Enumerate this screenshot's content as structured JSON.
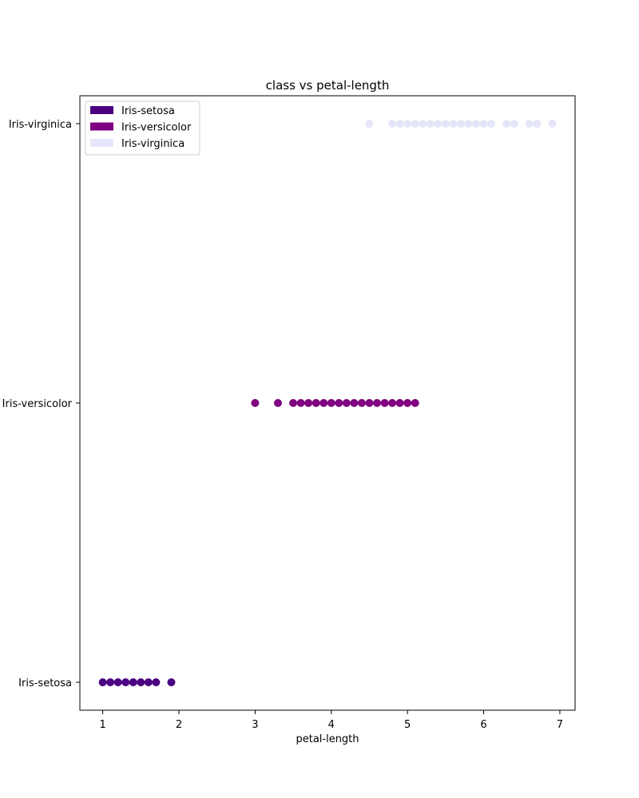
{
  "chart_data": {
    "type": "scatter",
    "title": "class vs petal-length",
    "xlabel": "petal-length",
    "ylabel": "",
    "xlim": [
      0.7,
      7.2
    ],
    "x_ticks": [
      1,
      2,
      3,
      4,
      5,
      6,
      7
    ],
    "categories": [
      "Iris-setosa",
      "Iris-versicolor",
      "Iris-virginica"
    ],
    "grid": false,
    "legend_position": "top-left",
    "series": [
      {
        "name": "Iris-setosa",
        "color": "#4b0082",
        "category": "Iris-setosa",
        "x": [
          1.0,
          1.1,
          1.2,
          1.3,
          1.4,
          1.5,
          1.6,
          1.7,
          1.9
        ]
      },
      {
        "name": "Iris-versicolor",
        "color": "#800080",
        "category": "Iris-versicolor",
        "x": [
          3.0,
          3.3,
          3.5,
          3.6,
          3.7,
          3.8,
          3.9,
          4.0,
          4.1,
          4.2,
          4.3,
          4.4,
          4.5,
          4.6,
          4.7,
          4.8,
          4.9,
          5.0,
          5.1
        ]
      },
      {
        "name": "Iris-virginica",
        "color": "#e6e6fa",
        "category": "Iris-virginica",
        "x": [
          4.5,
          4.8,
          4.9,
          5.0,
          5.1,
          5.2,
          5.3,
          5.4,
          5.5,
          5.6,
          5.7,
          5.8,
          5.9,
          6.0,
          6.1,
          6.3,
          6.4,
          6.6,
          6.7,
          6.9
        ]
      }
    ]
  }
}
